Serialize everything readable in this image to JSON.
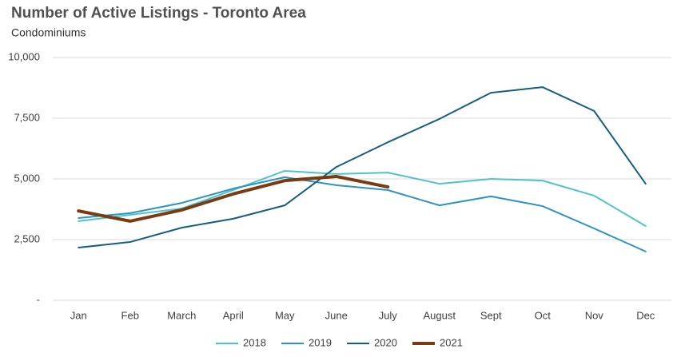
{
  "chart_data": {
    "type": "line",
    "title": "Number of Active Listings - Toronto Area",
    "subtitle": "Condominiums",
    "categories": [
      "Jan",
      "Feb",
      "March",
      "April",
      "May",
      "June",
      "July",
      "August",
      "Sept",
      "Oct",
      "Nov",
      "Dec"
    ],
    "series": [
      {
        "name": "2018",
        "color": "#4fc3c7",
        "values": [
          3260,
          3520,
          3780,
          4540,
          5330,
          5200,
          5260,
          4800,
          5000,
          4930,
          4310,
          3060
        ]
      },
      {
        "name": "2019",
        "color": "#2b93c6",
        "values": [
          3390,
          3590,
          4010,
          4600,
          5070,
          4740,
          4540,
          3910,
          4280,
          3880,
          2960,
          2010
        ]
      },
      {
        "name": "2020",
        "color": "#155f7e",
        "values": [
          2170,
          2400,
          2990,
          3360,
          3910,
          5490,
          6510,
          7470,
          8550,
          8780,
          7800,
          4800
        ]
      },
      {
        "name": "2021",
        "color": "#7a3a12",
        "values": [
          3680,
          3260,
          3720,
          4380,
          4930,
          5100,
          4670,
          null,
          null,
          null,
          null,
          null
        ]
      }
    ],
    "ylim": [
      0,
      10000
    ],
    "yticks": [
      {
        "value": 0,
        "label": "-"
      },
      {
        "value": 2500,
        "label": "2,500"
      },
      {
        "value": 5000,
        "label": "5,000"
      },
      {
        "value": 7500,
        "label": "7,500"
      },
      {
        "value": 10000,
        "label": "10,000"
      }
    ],
    "grid": true,
    "legend": "bottom"
  }
}
